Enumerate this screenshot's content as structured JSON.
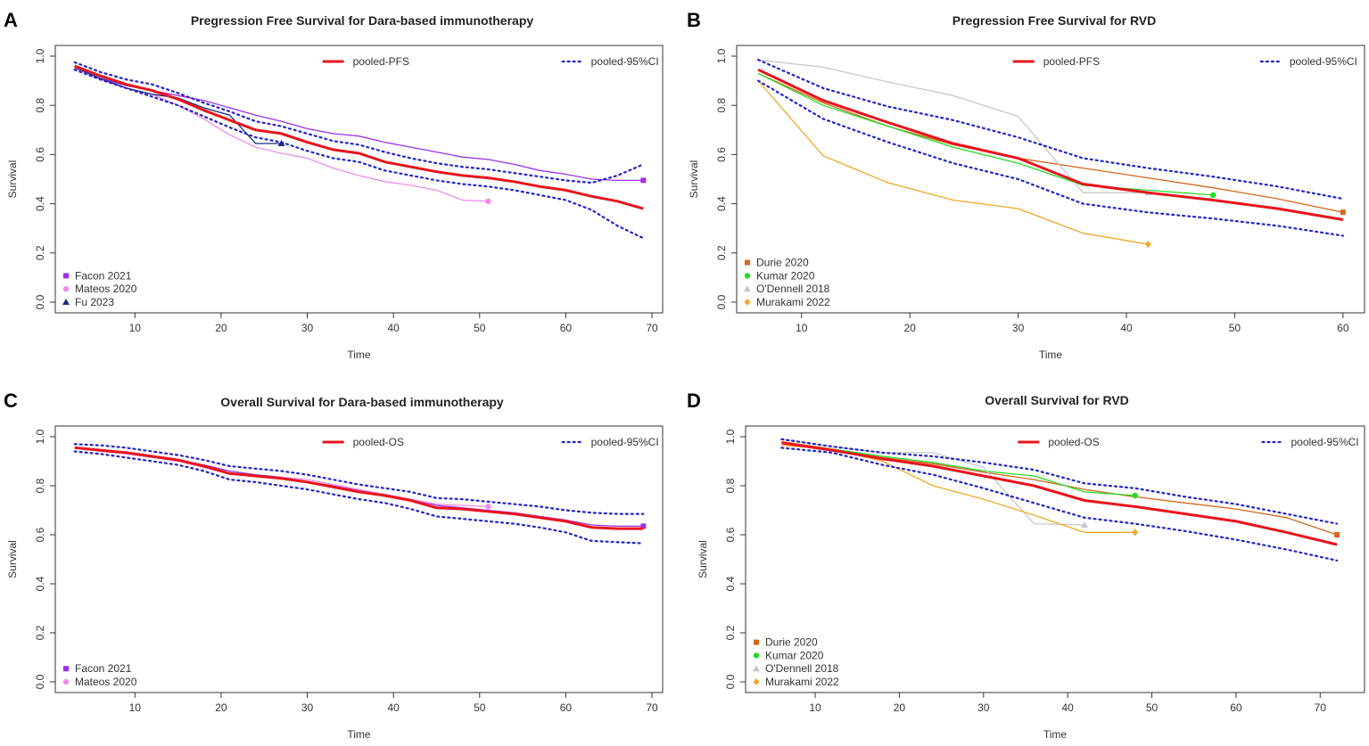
{
  "chart_data": [
    {
      "panel_letter": "A",
      "type": "line",
      "title": "Pregression Free Survival for Dara-based immunotherapy",
      "xlabel": "Time",
      "ylabel": "Survival",
      "xlim": [
        2,
        70
      ],
      "ylim": [
        0,
        1
      ],
      "xticks": [
        "10",
        "20",
        "30",
        "40",
        "50",
        "60",
        "70"
      ],
      "yticks": [
        "0.0",
        "0.2",
        "0.4",
        "0.6",
        "0.8",
        "1.0"
      ],
      "pooled_label": "pooled-PFS",
      "ci_label": "pooled-95%CI",
      "legend_position": "bottom-left",
      "colors": {
        "pooled": "#e8141c",
        "ci": "#2323c8"
      },
      "pooled": {
        "x": [
          3,
          6,
          9,
          12,
          15,
          18,
          21,
          24,
          27,
          30,
          33,
          36,
          39,
          42,
          45,
          48,
          51,
          54,
          57,
          60,
          63,
          66,
          69
        ],
        "y": [
          0.96,
          0.92,
          0.885,
          0.86,
          0.825,
          0.78,
          0.74,
          0.7,
          0.685,
          0.65,
          0.62,
          0.605,
          0.57,
          0.55,
          0.53,
          0.515,
          0.505,
          0.49,
          0.47,
          0.455,
          0.43,
          0.41,
          0.38
        ]
      },
      "ci_upper": {
        "x": [
          3,
          6,
          9,
          12,
          15,
          18,
          21,
          24,
          27,
          30,
          33,
          36,
          39,
          42,
          45,
          48,
          51,
          54,
          57,
          60,
          63,
          66,
          69
        ],
        "y": [
          0.975,
          0.935,
          0.905,
          0.885,
          0.85,
          0.81,
          0.775,
          0.735,
          0.715,
          0.685,
          0.655,
          0.64,
          0.61,
          0.585,
          0.565,
          0.55,
          0.54,
          0.525,
          0.51,
          0.495,
          0.485,
          0.515,
          0.56
        ]
      },
      "ci_lower": {
        "x": [
          3,
          6,
          9,
          12,
          15,
          18,
          21,
          24,
          27,
          30,
          33,
          36,
          39,
          42,
          45,
          48,
          51,
          54,
          57,
          60,
          63,
          66,
          69
        ],
        "y": [
          0.945,
          0.905,
          0.87,
          0.835,
          0.8,
          0.755,
          0.71,
          0.67,
          0.65,
          0.615,
          0.585,
          0.57,
          0.535,
          0.515,
          0.495,
          0.48,
          0.47,
          0.455,
          0.435,
          0.415,
          0.375,
          0.31,
          0.26
        ]
      },
      "series": [
        {
          "name": "Facon 2021",
          "color": "#9b30e8",
          "marker": "square",
          "x": [
            3,
            6,
            9,
            12,
            15,
            18,
            21,
            24,
            27,
            30,
            33,
            36,
            39,
            42,
            45,
            48,
            51,
            54,
            57,
            60,
            63,
            66,
            69
          ],
          "y": [
            0.95,
            0.91,
            0.88,
            0.86,
            0.84,
            0.82,
            0.79,
            0.76,
            0.735,
            0.705,
            0.685,
            0.675,
            0.65,
            0.63,
            0.61,
            0.59,
            0.58,
            0.56,
            0.535,
            0.52,
            0.5,
            0.495,
            0.495
          ]
        },
        {
          "name": "Mateos 2020",
          "color": "#f08ce8",
          "marker": "circle",
          "x": [
            3,
            6,
            9,
            12,
            15,
            18,
            21,
            24,
            27,
            30,
            33,
            36,
            39,
            42,
            45,
            48,
            51
          ],
          "y": [
            0.95,
            0.905,
            0.87,
            0.845,
            0.8,
            0.745,
            0.68,
            0.63,
            0.605,
            0.585,
            0.545,
            0.515,
            0.49,
            0.475,
            0.455,
            0.415,
            0.41
          ]
        },
        {
          "name": "Fu 2023",
          "color": "#1e2a78",
          "marker": "triangle",
          "x": [
            3,
            6,
            9,
            12,
            15,
            18,
            21,
            24,
            27
          ],
          "y": [
            0.955,
            0.91,
            0.87,
            0.845,
            0.83,
            0.79,
            0.76,
            0.645,
            0.645
          ]
        }
      ]
    },
    {
      "panel_letter": "B",
      "type": "line",
      "title": "Pregression Free Survival for RVD",
      "xlabel": "Time",
      "ylabel": "Survival",
      "xlim": [
        5,
        61
      ],
      "ylim": [
        0,
        1
      ],
      "xticks": [
        "10",
        "20",
        "30",
        "40",
        "50",
        "60"
      ],
      "yticks": [
        "0.0",
        "0.2",
        "0.4",
        "0.6",
        "0.8",
        "1.0"
      ],
      "pooled_label": "pooled-PFS",
      "ci_label": "pooled-95%CI",
      "legend_position": "bottom-left",
      "colors": {
        "pooled": "#e8141c",
        "ci": "#2323c8"
      },
      "pooled": {
        "x": [
          6,
          12,
          18,
          24,
          30,
          36,
          42,
          48,
          54,
          60
        ],
        "y": [
          0.945,
          0.82,
          0.73,
          0.645,
          0.585,
          0.48,
          0.445,
          0.415,
          0.38,
          0.335
        ]
      },
      "ci_upper": {
        "x": [
          6,
          12,
          18,
          24,
          30,
          36,
          42,
          48,
          54,
          60
        ],
        "y": [
          0.985,
          0.87,
          0.795,
          0.74,
          0.67,
          0.585,
          0.545,
          0.51,
          0.47,
          0.42
        ]
      },
      "ci_lower": {
        "x": [
          6,
          12,
          18,
          24,
          30,
          36,
          42,
          48,
          54,
          60
        ],
        "y": [
          0.9,
          0.745,
          0.65,
          0.565,
          0.5,
          0.4,
          0.365,
          0.34,
          0.31,
          0.27
        ]
      },
      "series": [
        {
          "name": "Durie 2020",
          "color": "#d4661c",
          "marker": "square",
          "x": [
            6,
            12,
            18,
            24,
            30,
            36,
            42,
            48,
            54,
            60
          ],
          "y": [
            0.93,
            0.81,
            0.715,
            0.64,
            0.585,
            0.545,
            0.505,
            0.465,
            0.42,
            0.365
          ]
        },
        {
          "name": "Kumar 2020",
          "color": "#22dd22",
          "marker": "circle",
          "x": [
            6,
            12,
            18,
            24,
            30,
            36,
            42,
            48
          ],
          "y": [
            0.93,
            0.8,
            0.715,
            0.63,
            0.565,
            0.475,
            0.455,
            0.435
          ]
        },
        {
          "name": "O'Dennell 2018",
          "color": "#c8c8c8",
          "marker": "triangle",
          "x": [
            6,
            12,
            18,
            24,
            30,
            36,
            42
          ],
          "y": [
            0.985,
            0.955,
            0.895,
            0.84,
            0.755,
            0.445,
            0.445
          ]
        },
        {
          "name": "Murakami 2022",
          "color": "#f0a828",
          "marker": "diamond",
          "x": [
            6,
            12,
            18,
            24,
            30,
            36,
            42
          ],
          "y": [
            0.9,
            0.595,
            0.485,
            0.415,
            0.38,
            0.28,
            0.235
          ]
        }
      ]
    },
    {
      "panel_letter": "C",
      "type": "line",
      "title": "Overall Survival for Dara-based immunotherapy",
      "xlabel": "Time",
      "ylabel": "Survival",
      "xlim": [
        2,
        70
      ],
      "ylim": [
        0,
        1
      ],
      "xticks": [
        "10",
        "20",
        "30",
        "40",
        "50",
        "60",
        "70"
      ],
      "yticks": [
        "0.0",
        "0.2",
        "0.4",
        "0.6",
        "0.8",
        "1.0"
      ],
      "pooled_label": "pooled-OS",
      "ci_label": "pooled-95%CI",
      "legend_position": "bottom-left",
      "colors": {
        "pooled": "#e8141c",
        "ci": "#2323c8"
      },
      "pooled": {
        "x": [
          3,
          6,
          9,
          12,
          15,
          18,
          21,
          24,
          27,
          30,
          33,
          36,
          39,
          42,
          45,
          48,
          51,
          54,
          57,
          60,
          63,
          66,
          69
        ],
        "y": [
          0.955,
          0.945,
          0.935,
          0.92,
          0.905,
          0.88,
          0.85,
          0.84,
          0.83,
          0.815,
          0.795,
          0.775,
          0.76,
          0.74,
          0.71,
          0.705,
          0.695,
          0.685,
          0.67,
          0.655,
          0.63,
          0.625,
          0.625
        ]
      },
      "ci_upper": {
        "x": [
          3,
          6,
          9,
          12,
          15,
          18,
          21,
          24,
          27,
          30,
          33,
          36,
          39,
          42,
          45,
          48,
          51,
          54,
          57,
          60,
          63,
          66,
          69
        ],
        "y": [
          0.97,
          0.965,
          0.955,
          0.94,
          0.925,
          0.905,
          0.88,
          0.87,
          0.86,
          0.845,
          0.825,
          0.805,
          0.79,
          0.775,
          0.75,
          0.745,
          0.735,
          0.725,
          0.715,
          0.7,
          0.69,
          0.685,
          0.685
        ]
      },
      "ci_lower": {
        "x": [
          3,
          6,
          9,
          12,
          15,
          18,
          21,
          24,
          27,
          30,
          33,
          36,
          39,
          42,
          45,
          48,
          51,
          54,
          57,
          60,
          63,
          66,
          69
        ],
        "y": [
          0.94,
          0.93,
          0.915,
          0.9,
          0.885,
          0.86,
          0.825,
          0.815,
          0.8,
          0.785,
          0.765,
          0.745,
          0.73,
          0.705,
          0.675,
          0.665,
          0.655,
          0.645,
          0.63,
          0.61,
          0.575,
          0.57,
          0.565
        ]
      },
      "series": [
        {
          "name": "Facon 2021",
          "color": "#9b30e8",
          "marker": "square",
          "x": [
            3,
            6,
            9,
            12,
            15,
            18,
            21,
            24,
            27,
            30,
            33,
            36,
            39,
            42,
            45,
            48,
            51,
            54,
            57,
            60,
            63,
            66,
            69
          ],
          "y": [
            0.955,
            0.945,
            0.935,
            0.92,
            0.905,
            0.885,
            0.86,
            0.845,
            0.835,
            0.815,
            0.8,
            0.78,
            0.765,
            0.745,
            0.72,
            0.71,
            0.7,
            0.69,
            0.675,
            0.66,
            0.64,
            0.635,
            0.635
          ]
        },
        {
          "name": "Mateos 2020",
          "color": "#f08ce8",
          "marker": "circle",
          "x": [
            3,
            6,
            9,
            12,
            15,
            18,
            21,
            24,
            27,
            30,
            33,
            36,
            39,
            42,
            45,
            48,
            51
          ],
          "y": [
            0.955,
            0.94,
            0.93,
            0.915,
            0.9,
            0.875,
            0.85,
            0.84,
            0.835,
            0.825,
            0.805,
            0.785,
            0.765,
            0.745,
            0.725,
            0.72,
            0.715
          ]
        }
      ]
    },
    {
      "panel_letter": "D",
      "type": "line",
      "title": "Overall Survival for RVD",
      "xlabel": "Time",
      "ylabel": "Survival",
      "xlim": [
        3,
        74
      ],
      "ylim": [
        0,
        1
      ],
      "xticks": [
        "10",
        "20",
        "30",
        "40",
        "50",
        "60",
        "70"
      ],
      "yticks": [
        "0.0",
        "0.2",
        "0.4",
        "0.6",
        "0.8",
        "1.0"
      ],
      "pooled_label": "pooled-OS",
      "ci_label": "pooled-95%CI",
      "legend_position": "bottom-left",
      "colors": {
        "pooled": "#e8141c",
        "ci": "#2323c8"
      },
      "pooled": {
        "x": [
          6,
          12,
          18,
          24,
          30,
          36,
          42,
          48,
          54,
          60,
          66,
          72
        ],
        "y": [
          0.975,
          0.945,
          0.91,
          0.88,
          0.84,
          0.8,
          0.74,
          0.715,
          0.685,
          0.655,
          0.61,
          0.56
        ]
      },
      "ci_upper": {
        "x": [
          6,
          12,
          18,
          24,
          30,
          36,
          42,
          48,
          54,
          60,
          66,
          72
        ],
        "y": [
          0.99,
          0.96,
          0.935,
          0.92,
          0.895,
          0.865,
          0.81,
          0.79,
          0.755,
          0.725,
          0.685,
          0.645
        ]
      },
      "ci_lower": {
        "x": [
          6,
          12,
          18,
          24,
          30,
          36,
          42,
          48,
          54,
          60,
          66,
          72
        ],
        "y": [
          0.955,
          0.935,
          0.885,
          0.845,
          0.79,
          0.73,
          0.67,
          0.645,
          0.615,
          0.58,
          0.54,
          0.495
        ]
      },
      "series": [
        {
          "name": "Durie 2020",
          "color": "#d4661c",
          "marker": "square",
          "x": [
            6,
            12,
            18,
            24,
            30,
            36,
            42,
            48,
            54,
            60,
            66,
            72
          ],
          "y": [
            0.98,
            0.95,
            0.915,
            0.89,
            0.855,
            0.825,
            0.785,
            0.755,
            0.73,
            0.705,
            0.67,
            0.6
          ]
        },
        {
          "name": "Kumar 2020",
          "color": "#22dd22",
          "marker": "circle",
          "x": [
            6,
            12,
            18,
            24,
            30,
            36,
            42,
            48
          ],
          "y": [
            0.975,
            0.95,
            0.92,
            0.895,
            0.86,
            0.84,
            0.775,
            0.76
          ]
        },
        {
          "name": "O'Dennell 2018",
          "color": "#c8c8c8",
          "marker": "triangle",
          "x": [
            6,
            12,
            18,
            24,
            30,
            36,
            42
          ],
          "y": [
            0.99,
            0.96,
            0.935,
            0.935,
            0.875,
            0.645,
            0.64
          ]
        },
        {
          "name": "Murakami 2022",
          "color": "#f0a828",
          "marker": "diamond",
          "x": [
            6,
            12,
            18,
            24,
            30,
            36,
            42,
            48
          ],
          "y": [
            0.965,
            0.95,
            0.9,
            0.8,
            0.745,
            0.68,
            0.61,
            0.61
          ]
        }
      ]
    }
  ]
}
